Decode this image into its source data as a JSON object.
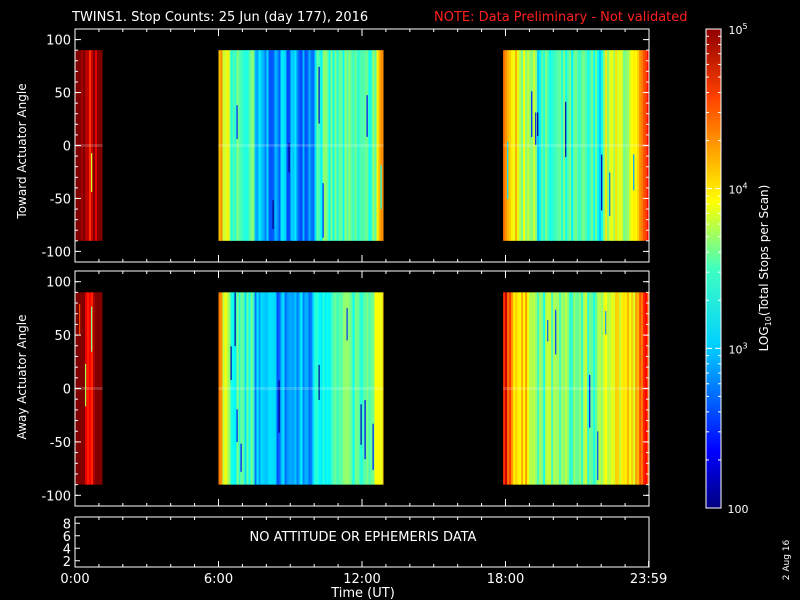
{
  "header": {
    "title": "TWINS1. Stop Counts: 25 Jun (day 177), 2016",
    "note": "NOTE: Data Preliminary - Not validated",
    "note_color": "#ff2020"
  },
  "date_stamp": "2 Aug 16",
  "colorbar": {
    "label": "LOG10(Total Stops per Scan)",
    "ticks": [
      {
        "value": 100,
        "label": "100"
      },
      {
        "value": 1000,
        "label": "10^3"
      },
      {
        "value": 10000,
        "label": "10^4"
      },
      {
        "value": 100000,
        "label": "10^5"
      }
    ],
    "range": [
      100,
      100000
    ],
    "scale": "log"
  },
  "bottom_panel": {
    "message": "NO ATTITUDE OR EPHEMERIS DATA",
    "yticks": [
      "8",
      "6",
      "4",
      "2"
    ]
  },
  "xaxis": {
    "label": "Time (UT)",
    "ticks": [
      "0:00",
      "6:00",
      "12:00",
      "18:00",
      "23:59"
    ]
  },
  "chart_data": [
    {
      "type": "heatmap",
      "title": "TWINS1. Stop Counts: 25 Jun (day 177), 2016",
      "ylabel": "Toward Actuator Angle",
      "xlabel": "Time (UT)",
      "xlim": [
        0,
        24
      ],
      "ylim": [
        -110,
        110
      ],
      "yticks": [
        100,
        50,
        0,
        -50,
        -100
      ],
      "value_scale": "log",
      "value_range": [
        100,
        100000
      ],
      "angle_extent": [
        -90,
        90
      ],
      "data_segments": [
        {
          "start_h": 0.0,
          "end_h": 1.15,
          "typical_log10": 4.5,
          "low_zone_h": null
        },
        {
          "start_h": 6.0,
          "end_h": 12.9,
          "typical_log10": 3.3,
          "low_zone_h": [
            7.5,
            10.0
          ]
        },
        {
          "start_h": 17.9,
          "end_h": 24.0,
          "typical_log10": 3.7,
          "low_zone_h": [
            19.2,
            22.0
          ]
        }
      ]
    },
    {
      "type": "heatmap",
      "ylabel": "Away Actuator Angle",
      "xlabel": "Time (UT)",
      "xlim": [
        0,
        24
      ],
      "ylim": [
        -110,
        110
      ],
      "yticks": [
        100,
        50,
        0,
        -50,
        -100
      ],
      "value_scale": "log",
      "value_range": [
        100,
        100000
      ],
      "angle_extent": [
        -90,
        90
      ],
      "data_segments": [
        {
          "start_h": 0.0,
          "end_h": 1.15,
          "typical_log10": 4.6,
          "low_zone_h": null
        },
        {
          "start_h": 6.0,
          "end_h": 12.9,
          "typical_log10": 3.3,
          "low_zone_h": [
            7.5,
            10.0
          ]
        },
        {
          "start_h": 17.9,
          "end_h": 24.0,
          "typical_log10": 3.9,
          "low_zone_h": [
            19.2,
            22.0
          ]
        }
      ]
    }
  ]
}
